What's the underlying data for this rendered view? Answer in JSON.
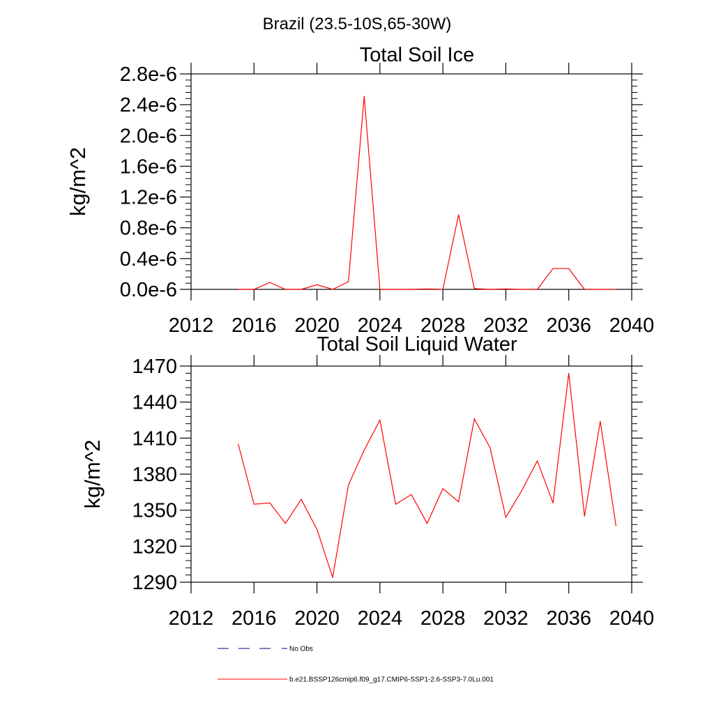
{
  "figure": {
    "title": "Brazil (23.5-10S,65-30W)"
  },
  "chart_data": [
    {
      "type": "line",
      "title": "Total Soil Ice",
      "xlabel": "",
      "ylabel": "kg/m^2",
      "xlim": [
        2012,
        2040
      ],
      "ylim": [
        0.0,
        2.8e-06
      ],
      "xticks": [
        "2012",
        "2016",
        "2020",
        "2024",
        "2028",
        "2032",
        "2036",
        "2040"
      ],
      "yticks": [
        "0.0e-6",
        "0.4e-6",
        "0.8e-6",
        "1.2e-6",
        "1.6e-6",
        "2.0e-6",
        "2.4e-6",
        "2.8e-6"
      ],
      "ytick_values": [
        0.0,
        4e-07,
        8e-07,
        1.2e-06,
        1.6e-06,
        2e-06,
        2.4e-06,
        2.8e-06
      ],
      "grid": false,
      "series": [
        {
          "name": "b.e21.BSSP126cmip6.f09_g17.CMIP6-SSP1-2.6-SSP3-7.0Lu.001",
          "color": "#ff0000",
          "x": [
            2015,
            2016,
            2017,
            2018,
            2019,
            2020,
            2021,
            2022,
            2023,
            2024,
            2025,
            2026,
            2027,
            2028,
            2029,
            2030,
            2031,
            2032,
            2033,
            2034,
            2035,
            2036,
            2037,
            2038,
            2039
          ],
          "y": [
            0.0,
            0.0,
            9e-08,
            0.0,
            0.0,
            6e-08,
            0.0,
            1e-07,
            2.51e-06,
            0.0,
            0.0,
            0.0,
            5e-09,
            0.0,
            9.7e-07,
            1e-08,
            0.0,
            5e-09,
            0.0,
            0.0,
            2.7e-07,
            2.7e-07,
            0.0,
            0.0,
            0.0
          ]
        }
      ]
    },
    {
      "type": "line",
      "title": "Total Soil Liquid Water",
      "xlabel": "",
      "ylabel": "kg/m^2",
      "xlim": [
        2012,
        2040
      ],
      "ylim": [
        1290,
        1470
      ],
      "xticks": [
        "2012",
        "2016",
        "2020",
        "2024",
        "2028",
        "2032",
        "2036",
        "2040"
      ],
      "yticks": [
        "1290",
        "1320",
        "1350",
        "1380",
        "1410",
        "1440",
        "1470"
      ],
      "ytick_values": [
        1290,
        1320,
        1350,
        1380,
        1410,
        1440,
        1470
      ],
      "grid": false,
      "series": [
        {
          "name": "b.e21.BSSP126cmip6.f09_g17.CMIP6-SSP1-2.6-SSP3-7.0Lu.001",
          "color": "#ff0000",
          "x": [
            2015,
            2016,
            2017,
            2018,
            2019,
            2020,
            2021,
            2022,
            2023,
            2024,
            2025,
            2026,
            2027,
            2028,
            2029,
            2030,
            2031,
            2032,
            2033,
            2034,
            2035,
            2036,
            2037,
            2038,
            2039
          ],
          "y": [
            1405,
            1355,
            1356,
            1339,
            1359,
            1334,
            1294,
            1371,
            1400,
            1425,
            1355,
            1363,
            1339,
            1368,
            1357,
            1426,
            1402,
            1344,
            1366,
            1391,
            1356,
            1464,
            1345,
            1424,
            1337
          ]
        }
      ]
    }
  ],
  "legend": {
    "items": [
      {
        "label": "No Obs",
        "color": "#000080",
        "dash": true
      },
      {
        "label": "b.e21.BSSP126cmip6.f09_g17.CMIP6-SSP1-2.6-SSP3-7.0Lu.001",
        "color": "#ff0000",
        "dash": false
      }
    ]
  }
}
